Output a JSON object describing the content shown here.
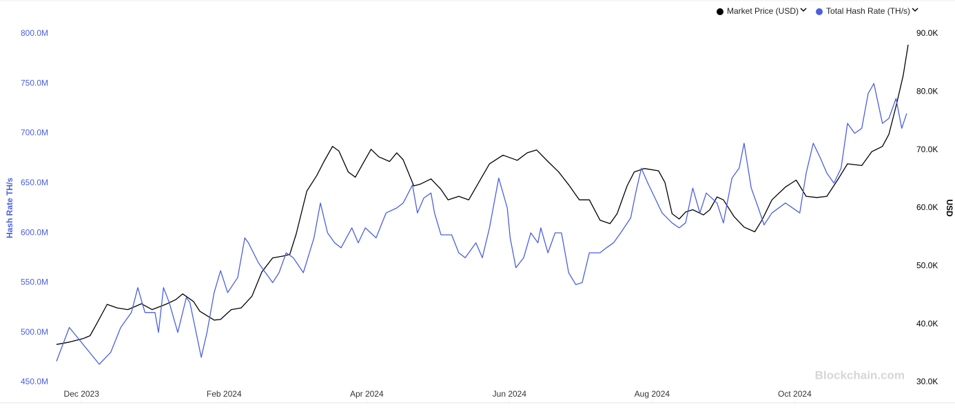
{
  "chart_data": {
    "type": "line",
    "legend": "top-right",
    "watermark": "Blockchain.com",
    "ylabel": "Hash Rate TH/s",
    "y2label": "USD",
    "xlim": [
      -0.35,
      11.59
    ],
    "xticks": [
      {
        "value": 0,
        "label": "Dec 2023"
      },
      {
        "value": 2,
        "label": "Feb 2024"
      },
      {
        "value": 4,
        "label": "Apr 2024"
      },
      {
        "value": 6,
        "label": "Jun 2024"
      },
      {
        "value": 8,
        "label": "Aug 2024"
      },
      {
        "value": 10,
        "label": "Oct 2024"
      }
    ],
    "ylim": [
      450,
      800
    ],
    "yticks": [
      {
        "value": 450,
        "label": "450.0M"
      },
      {
        "value": 500,
        "label": "500.0M"
      },
      {
        "value": 550,
        "label": "550.0M"
      },
      {
        "value": 600,
        "label": "600.0M"
      },
      {
        "value": 650,
        "label": "650.0M"
      },
      {
        "value": 700,
        "label": "700.0M"
      },
      {
        "value": 750,
        "label": "750.0M"
      },
      {
        "value": 800,
        "label": "800.0M"
      }
    ],
    "y2lim": [
      30,
      90
    ],
    "y2ticks": [
      {
        "value": 30,
        "label": "30.0K"
      },
      {
        "value": 40,
        "label": "40.0K"
      },
      {
        "value": 50,
        "label": "50.0K"
      },
      {
        "value": 60,
        "label": "60.0K"
      },
      {
        "value": 70,
        "label": "70.0K"
      },
      {
        "value": 80,
        "label": "80.0K"
      },
      {
        "value": 90,
        "label": "90.0K"
      }
    ],
    "series": [
      {
        "name": "Market Price (USD)",
        "color": "#000000",
        "axis": "y2",
        "x": [
          -0.35,
          -0.17,
          0.02,
          0.12,
          0.21,
          0.36,
          0.5,
          0.65,
          0.84,
          0.99,
          1.18,
          1.32,
          1.42,
          1.57,
          1.66,
          1.86,
          1.95,
          2.1,
          2.24,
          2.39,
          2.53,
          2.68,
          2.82,
          2.92,
          3.01,
          3.16,
          3.3,
          3.4,
          3.52,
          3.61,
          3.74,
          3.84,
          3.93,
          4.06,
          4.17,
          4.32,
          4.42,
          4.51,
          4.66,
          4.75,
          4.9,
          5.04,
          5.14,
          5.29,
          5.43,
          5.57,
          5.72,
          5.91,
          6.11,
          6.25,
          6.38,
          6.54,
          6.69,
          6.83,
          6.98,
          7.12,
          7.27,
          7.41,
          7.51,
          7.65,
          7.75,
          7.89,
          8.09,
          8.18,
          8.28,
          8.38,
          8.47,
          8.57,
          8.72,
          8.81,
          8.91,
          9.0,
          9.15,
          9.29,
          9.44,
          9.54,
          9.68,
          9.87,
          10.02,
          10.16,
          10.31,
          10.45,
          10.6,
          10.74,
          10.94,
          11.08,
          11.23,
          11.32,
          11.42,
          11.52,
          11.59
        ],
        "values": [
          36.5,
          36.9,
          37.5,
          38,
          40,
          43.4,
          42.8,
          42.5,
          43.5,
          42.5,
          43.4,
          44.2,
          45.2,
          43.9,
          42.2,
          40.7,
          40.8,
          42.5,
          42.8,
          44.8,
          49,
          51.4,
          51.7,
          52,
          55.5,
          62.9,
          65.6,
          68,
          70.6,
          69.8,
          66.2,
          65.3,
          67.3,
          70.1,
          68.8,
          68,
          69.5,
          68.3,
          63.8,
          64.1,
          65,
          63.2,
          61.4,
          62,
          61.4,
          64.4,
          67.6,
          69.1,
          68.2,
          69.5,
          70,
          68,
          66.2,
          64,
          61.4,
          61.4,
          57.9,
          57.3,
          59,
          63.8,
          66.2,
          66.8,
          66.4,
          64.4,
          59,
          58.1,
          59.3,
          59.7,
          58.8,
          59.7,
          61.9,
          61.4,
          58.5,
          56.7,
          55.9,
          57.9,
          61.4,
          63.6,
          64.8,
          62,
          61.8,
          62,
          64.8,
          67.6,
          67.3,
          69.7,
          70.6,
          72.7,
          77.5,
          82.8,
          88.1
        ]
      },
      {
        "name": "Total Hash Rate (TH/s)",
        "color": "#4a5fe0",
        "axis": "y",
        "x": [
          -0.35,
          -0.17,
          0,
          0.25,
          0.41,
          0.55,
          0.7,
          0.79,
          0.89,
          1.03,
          1.08,
          1.15,
          1.23,
          1.35,
          1.47,
          1.52,
          1.68,
          1.76,
          1.86,
          1.95,
          2.05,
          2.19,
          2.29,
          2.34,
          2.48,
          2.58,
          2.68,
          2.77,
          2.87,
          2.97,
          3.11,
          3.26,
          3.35,
          3.45,
          3.55,
          3.64,
          3.79,
          3.88,
          3.98,
          4.13,
          4.27,
          4.42,
          4.51,
          4.64,
          4.71,
          4.8,
          4.9,
          4.95,
          5.04,
          5.19,
          5.29,
          5.38,
          5.53,
          5.62,
          5.72,
          5.85,
          5.97,
          6.01,
          6.09,
          6.2,
          6.3,
          6.4,
          6.44,
          6.54,
          6.64,
          6.73,
          6.83,
          6.93,
          7.02,
          7.12,
          7.27,
          7.36,
          7.46,
          7.56,
          7.7,
          7.77,
          7.85,
          7.94,
          8.14,
          8.28,
          8.38,
          8.47,
          8.57,
          8.67,
          8.76,
          8.91,
          9.0,
          9.12,
          9.22,
          9.29,
          9.39,
          9.49,
          9.57,
          9.68,
          9.87,
          10.07,
          10.16,
          10.26,
          10.36,
          10.45,
          10.55,
          10.65,
          10.74,
          10.84,
          10.94,
          11.03,
          11.11,
          11.23,
          11.32,
          11.42,
          11.5,
          11.57
        ],
        "values": [
          471,
          505,
          490,
          468,
          480,
          505,
          520,
          545,
          520,
          520,
          500,
          545,
          530,
          500,
          535,
          530,
          475,
          500,
          540,
          562,
          540,
          555,
          595,
          590,
          570,
          560,
          550,
          560,
          580,
          575,
          560,
          595,
          630,
          600,
          590,
          585,
          605,
          590,
          605,
          595,
          620,
          625,
          630,
          648,
          620,
          635,
          640,
          620,
          598,
          598,
          580,
          575,
          590,
          575,
          605,
          655,
          625,
          595,
          565,
          575,
          600,
          590,
          605,
          580,
          600,
          600,
          560,
          548,
          550,
          580,
          580,
          585,
          590,
          600,
          615,
          640,
          665,
          650,
          620,
          610,
          605,
          610,
          645,
          620,
          640,
          630,
          610,
          655,
          665,
          690,
          645,
          625,
          608,
          620,
          630,
          620,
          660,
          690,
          675,
          660,
          650,
          665,
          710,
          700,
          705,
          740,
          750,
          710,
          715,
          735,
          705,
          720
        ]
      }
    ]
  }
}
